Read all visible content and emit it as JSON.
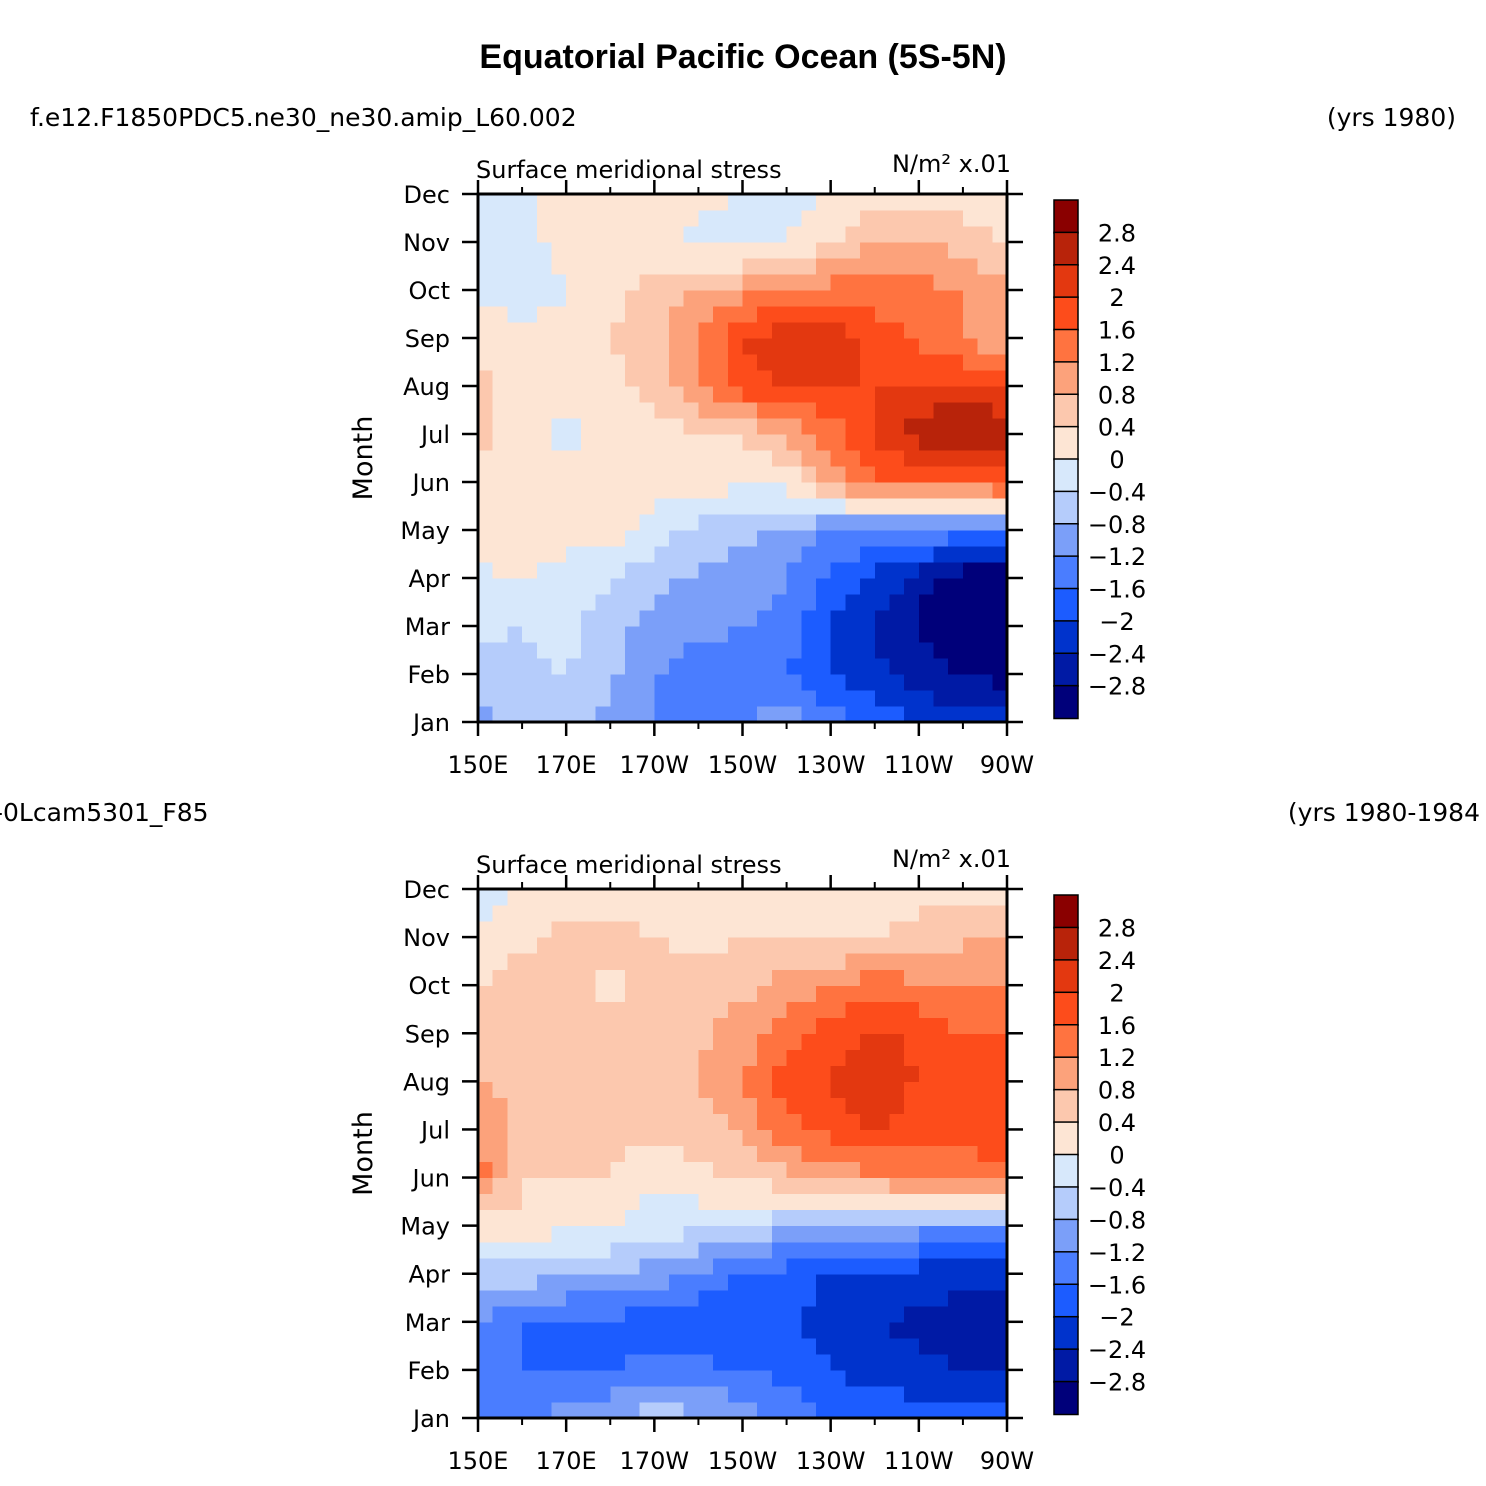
{
  "figure": {
    "title": "Equatorial Pacific Ocean (5S-5N)"
  },
  "panels": [
    {
      "case_name": "f.e12.F1850PDC5.ne30_ne30.amip_L60.002",
      "years": "(yrs 1980)"
    },
    {
      "case_name": "-0Lcam5301_F85",
      "years": "(yrs 1980-1984"
    }
  ],
  "chart_data": [
    {
      "type": "heatmap",
      "title": "Surface meridional stress",
      "units": "N/m² x.01",
      "ylabel": "Month",
      "xlabel": "",
      "x": [
        150,
        160,
        170,
        180,
        190,
        200,
        210,
        220,
        230,
        240,
        250,
        260,
        270
      ],
      "xlim": [
        150,
        270
      ],
      "x_ticks": [
        150,
        170,
        190,
        210,
        230,
        250,
        270
      ],
      "x_tick_labels": [
        "150E",
        "170E",
        "170W",
        "150W",
        "130W",
        "110W",
        "90W"
      ],
      "y_tick_labels": [
        "Jan",
        "Feb",
        "Mar",
        "Apr",
        "May",
        "Jun",
        "Jul",
        "Aug",
        "Sep",
        "Oct",
        "Nov",
        "Dec"
      ],
      "values": [
        [
          -1.0,
          -0.6,
          -0.7,
          -0.9,
          -1.2,
          -1.3,
          -1.2,
          -1.0,
          -1.4,
          -1.7,
          -2.0,
          -2.2,
          -2.3
        ],
        [
          -0.6,
          -0.5,
          -0.4,
          -0.7,
          -1.2,
          -1.4,
          -1.5,
          -1.6,
          -2.0,
          -2.3,
          -2.6,
          -2.8,
          -3.0
        ],
        [
          -0.3,
          -0.4,
          -0.3,
          -0.6,
          -1.0,
          -1.1,
          -1.2,
          -1.3,
          -2.0,
          -2.4,
          -2.9,
          -3.2,
          -3.3
        ],
        [
          -0.1,
          0.0,
          -0.2,
          -0.3,
          -0.7,
          -0.9,
          -1.0,
          -1.2,
          -1.7,
          -2.1,
          -2.6,
          -3.1,
          -3.2
        ],
        [
          0.3,
          0.4,
          0.2,
          0.2,
          -0.2,
          -0.5,
          -0.7,
          -0.9,
          -1.2,
          -1.3,
          -1.3,
          -1.4,
          -1.5
        ],
        [
          0.2,
          0.1,
          0.1,
          0.1,
          0.2,
          0.2,
          0.1,
          0.1,
          0.9,
          1.6,
          1.6,
          1.6,
          1.8
        ],
        [
          0.5,
          0.2,
          -0.1,
          0.1,
          0.2,
          0.3,
          0.4,
          0.9,
          1.4,
          2.0,
          2.6,
          3.0,
          2.6
        ],
        [
          0.6,
          0.2,
          0.2,
          0.3,
          0.6,
          1.2,
          1.8,
          2.0,
          2.0,
          2.0,
          2.1,
          2.0,
          2.0
        ],
        [
          0.2,
          0.1,
          0.1,
          0.4,
          0.7,
          1.2,
          2.0,
          2.3,
          2.2,
          1.8,
          1.5,
          1.2,
          0.8
        ],
        [
          -0.1,
          -0.2,
          0.0,
          0.3,
          0.5,
          0.8,
          1.0,
          1.2,
          1.4,
          1.4,
          1.3,
          1.2,
          1.0
        ],
        [
          -0.1,
          -0.1,
          0.1,
          0.1,
          0.2,
          -0.1,
          -0.2,
          0.0,
          0.4,
          0.8,
          0.9,
          0.6,
          0.3
        ],
        [
          -0.2,
          -0.1,
          0.1,
          0.2,
          0.2,
          0.1,
          0.0,
          -0.1,
          0.0,
          0.2,
          0.3,
          0.2,
          0.2
        ]
      ],
      "color_levels": [
        -2.8,
        -2.4,
        -2.0,
        -1.6,
        -1.2,
        -0.8,
        -0.4,
        0,
        0.4,
        0.8,
        1.2,
        1.6,
        2.0,
        2.4,
        2.8
      ],
      "colorbar_labels": [
        "2.8",
        "2.4",
        "2",
        "1.6",
        "1.2",
        "0.8",
        "0.4",
        "0",
        "−0.4",
        "−0.8",
        "−1.2",
        "−1.6",
        "−2",
        "−2.4",
        "−2.8"
      ]
    },
    {
      "type": "heatmap",
      "title": "Surface meridional stress",
      "units": "N/m² x.01",
      "ylabel": "Month",
      "xlabel": "",
      "x": [
        150,
        160,
        170,
        180,
        190,
        200,
        210,
        220,
        230,
        240,
        250,
        260,
        270
      ],
      "xlim": [
        150,
        270
      ],
      "x_ticks": [
        150,
        170,
        190,
        210,
        230,
        250,
        270
      ],
      "x_tick_labels": [
        "150E",
        "170E",
        "170W",
        "150W",
        "130W",
        "110W",
        "90W"
      ],
      "y_tick_labels": [
        "Jan",
        "Feb",
        "Mar",
        "Apr",
        "May",
        "Jun",
        "Jul",
        "Aug",
        "Sep",
        "Oct",
        "Nov",
        "Dec"
      ],
      "values": [
        [
          -1.6,
          -1.5,
          -1.0,
          -0.8,
          -0.6,
          -0.7,
          -1.0,
          -1.3,
          -1.6,
          -1.7,
          -1.8,
          -1.8,
          -1.9
        ],
        [
          -1.6,
          -1.6,
          -1.6,
          -1.6,
          -1.5,
          -1.5,
          -1.6,
          -1.7,
          -2.0,
          -2.2,
          -2.3,
          -2.4,
          -2.4
        ],
        [
          -1.2,
          -1.6,
          -1.7,
          -1.7,
          -1.8,
          -1.9,
          -2.0,
          -1.9,
          -2.3,
          -2.4,
          -2.5,
          -2.6,
          -2.6
        ],
        [
          -0.7,
          -0.6,
          -0.7,
          -0.8,
          -1.0,
          -1.3,
          -1.6,
          -1.8,
          -2.0,
          -2.1,
          -2.2,
          -2.3,
          -2.3
        ],
        [
          0.2,
          0.3,
          0.1,
          0.0,
          -0.2,
          -0.3,
          -0.5,
          -0.7,
          -0.9,
          -1.0,
          -1.0,
          -1.1,
          -1.1
        ],
        [
          1.4,
          0.4,
          0.4,
          0.4,
          0.1,
          0.3,
          0.5,
          0.7,
          0.9,
          1.1,
          1.3,
          1.4,
          1.5
        ],
        [
          1.2,
          0.5,
          0.6,
          0.5,
          0.5,
          0.6,
          0.9,
          1.4,
          1.8,
          2.0,
          1.8,
          1.7,
          1.8
        ],
        [
          0.9,
          0.6,
          0.7,
          0.6,
          0.6,
          0.8,
          1.2,
          1.8,
          2.1,
          2.2,
          2.0,
          1.8,
          1.7
        ],
        [
          0.5,
          0.6,
          0.6,
          0.6,
          0.6,
          0.7,
          1.0,
          1.3,
          1.8,
          2.1,
          1.9,
          1.6,
          1.6
        ],
        [
          0.4,
          0.6,
          0.6,
          0.3,
          0.5,
          0.6,
          0.7,
          1.0,
          1.2,
          1.4,
          1.3,
          1.2,
          1.2
        ],
        [
          0.2,
          0.3,
          0.5,
          0.5,
          0.4,
          0.3,
          0.4,
          0.3,
          0.3,
          0.4,
          0.6,
          0.7,
          0.9
        ],
        [
          -0.3,
          0.1,
          0.2,
          0.2,
          0.2,
          0.2,
          0.1,
          0.1,
          0.1,
          0.1,
          0.2,
          0.2,
          0.3
        ]
      ],
      "color_levels": [
        -2.8,
        -2.4,
        -2.0,
        -1.6,
        -1.2,
        -0.8,
        -0.4,
        0,
        0.4,
        0.8,
        1.2,
        1.6,
        2.0,
        2.4,
        2.8
      ],
      "colorbar_labels": [
        "2.8",
        "2.4",
        "2",
        "1.6",
        "1.2",
        "0.8",
        "0.4",
        "0",
        "−0.4",
        "−0.8",
        "−1.2",
        "−1.6",
        "−2",
        "−2.4",
        "−2.8"
      ]
    }
  ],
  "palette": [
    "#00007a",
    "#001aa5",
    "#0033cc",
    "#1c5cff",
    "#4a7dff",
    "#7b9ff9",
    "#b5ccfb",
    "#d7e8fb",
    "#fde5d4",
    "#fcc8ae",
    "#fca27b",
    "#ff7340",
    "#fd4c1b",
    "#e33810",
    "#b8230a",
    "#8a0000"
  ]
}
